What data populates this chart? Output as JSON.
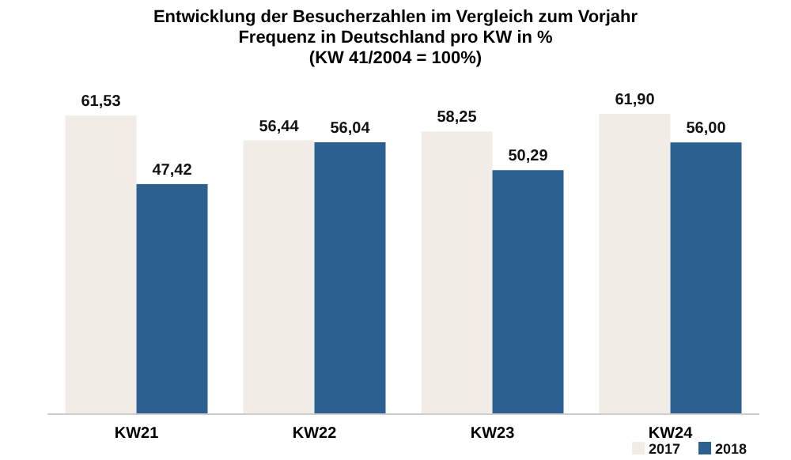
{
  "chart_data": {
    "type": "bar",
    "title": "Entwicklung der Besucherzahlen im Vergleich zum Vorjahr",
    "subtitle": "Frequenz in Deutschland pro KW in %\n(KW 41/2004 = 100%)",
    "categories": [
      "KW21",
      "KW22",
      "KW23",
      "KW24"
    ],
    "series": [
      {
        "name": "2017",
        "color": "#f1ede6",
        "values": [
          61.53,
          56.44,
          58.25,
          61.9
        ],
        "value_labels": [
          "61,53",
          "56,44",
          "58,25",
          "61,90"
        ]
      },
      {
        "name": "2018",
        "color": "#2b6090",
        "values": [
          47.42,
          56.04,
          50.29,
          56.0
        ],
        "value_labels": [
          "47,42",
          "56,04",
          "50,29",
          "56,00"
        ]
      }
    ],
    "legend": "bottom right",
    "grid": false
  }
}
